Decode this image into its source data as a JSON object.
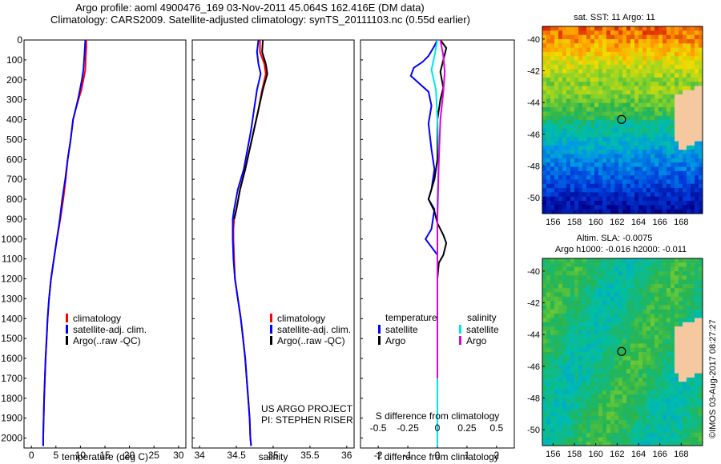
{
  "header": {
    "line1": "Argo profile: aoml 4900476_169 03-Nov-2011 45.064S 162.416E (DM data)",
    "line2": "Climatology: CARS2009. Satellite-adjusted climatology: synTS_20111103.nc (0.55d earlier)"
  },
  "colors": {
    "climatology": "#ff0000",
    "satellite": "#0000ff",
    "argo": "#000000",
    "sal_satellite": "#00e5e5",
    "sal_argo": "#e000e0",
    "land": "#f5c8a0"
  },
  "chart_data": [
    {
      "type": "line",
      "xlabel": "temperature (deg C)",
      "ylim": [
        2050,
        0
      ],
      "xlim": [
        -1.5,
        31.5
      ],
      "xticks": [
        "0",
        "5",
        "10",
        "15",
        "20",
        "25",
        "30"
      ],
      "yticks": [
        "0",
        "100",
        "200",
        "300",
        "400",
        "500",
        "600",
        "700",
        "800",
        "900",
        "1000",
        "1100",
        "1200",
        "1300",
        "1400",
        "1500",
        "1600",
        "1700",
        "1800",
        "1900",
        "2000"
      ],
      "legend": [
        "climatology",
        "satellite-adj. clim.",
        "Argo(..raw -QC)"
      ],
      "series": [
        {
          "name": "climatology",
          "points": [
            [
              11.2,
              0
            ],
            [
              11.2,
              40
            ],
            [
              11.1,
              80
            ],
            [
              11.0,
              150
            ],
            [
              10.6,
              200
            ],
            [
              10.2,
              250
            ],
            [
              9.6,
              300
            ],
            [
              9.0,
              350
            ],
            [
              8.5,
              400
            ],
            [
              8.0,
              500
            ],
            [
              7.4,
              600
            ],
            [
              7.0,
              700
            ],
            [
              6.5,
              800
            ],
            [
              5.9,
              900
            ],
            [
              5.2,
              1000
            ],
            [
              4.6,
              1100
            ],
            [
              4.0,
              1200
            ],
            [
              3.6,
              1300
            ],
            [
              3.3,
              1400
            ],
            [
              3.1,
              1500
            ],
            [
              2.9,
              1600
            ],
            [
              2.75,
              1700
            ],
            [
              2.6,
              1800
            ],
            [
              2.5,
              1900
            ],
            [
              2.4,
              2000
            ],
            [
              2.4,
              2040
            ]
          ]
        },
        {
          "name": "satellite-adj. clim.",
          "points": [
            [
              11.0,
              0
            ],
            [
              10.9,
              40
            ],
            [
              10.8,
              80
            ],
            [
              10.6,
              150
            ],
            [
              10.3,
              200
            ],
            [
              9.9,
              250
            ],
            [
              9.5,
              300
            ],
            [
              9.0,
              350
            ],
            [
              8.5,
              400
            ],
            [
              8.0,
              500
            ],
            [
              7.4,
              600
            ],
            [
              6.9,
              700
            ],
            [
              6.3,
              800
            ],
            [
              5.8,
              900
            ],
            [
              5.2,
              1000
            ],
            [
              4.6,
              1100
            ],
            [
              4.0,
              1200
            ],
            [
              3.6,
              1300
            ],
            [
              3.3,
              1400
            ],
            [
              3.1,
              1500
            ],
            [
              2.9,
              1600
            ],
            [
              2.75,
              1700
            ],
            [
              2.6,
              1800
            ],
            [
              2.5,
              1900
            ],
            [
              2.4,
              2000
            ],
            [
              2.4,
              2040
            ]
          ]
        }
      ]
    },
    {
      "type": "line",
      "xlabel": "salinity",
      "ylim": [
        2050,
        0
      ],
      "xlim": [
        33.9,
        36.1
      ],
      "xticks": [
        "34",
        "34.5",
        "35",
        "35.5",
        "36"
      ],
      "legend": [
        "climatology",
        "satellite-adj. clim.",
        "Argo(..raw -QC)"
      ],
      "annotation": [
        "US ARGO PROJECT",
        "PI: STEPHEN RISER"
      ],
      "series": [
        {
          "name": "climatology",
          "points": [
            [
              34.82,
              0
            ],
            [
              34.82,
              60
            ],
            [
              34.88,
              120
            ],
            [
              34.9,
              170
            ],
            [
              34.85,
              250
            ],
            [
              34.8,
              350
            ],
            [
              34.74,
              450
            ],
            [
              34.68,
              550
            ],
            [
              34.62,
              650
            ],
            [
              34.55,
              750
            ],
            [
              34.5,
              850
            ],
            [
              34.47,
              900
            ],
            [
              34.46,
              950
            ],
            [
              34.46,
              1000
            ],
            [
              34.47,
              1100
            ],
            [
              34.48,
              1200
            ],
            [
              34.52,
              1300
            ],
            [
              34.56,
              1400
            ],
            [
              34.59,
              1500
            ],
            [
              34.62,
              1600
            ],
            [
              34.64,
              1700
            ],
            [
              34.66,
              1800
            ],
            [
              34.68,
              1900
            ],
            [
              34.69,
              2000
            ],
            [
              34.7,
              2040
            ]
          ]
        },
        {
          "name": "satellite-adj. clim.",
          "points": [
            [
              34.8,
              0
            ],
            [
              34.78,
              60
            ],
            [
              34.8,
              120
            ],
            [
              34.83,
              170
            ],
            [
              34.78,
              250
            ],
            [
              34.74,
              350
            ],
            [
              34.7,
              450
            ],
            [
              34.65,
              550
            ],
            [
              34.6,
              650
            ],
            [
              34.52,
              750
            ],
            [
              34.47,
              850
            ],
            [
              34.45,
              900
            ],
            [
              34.45,
              950
            ],
            [
              34.45,
              1000
            ],
            [
              34.46,
              1100
            ],
            [
              34.48,
              1200
            ],
            [
              34.52,
              1300
            ],
            [
              34.56,
              1400
            ],
            [
              34.59,
              1500
            ],
            [
              34.62,
              1600
            ],
            [
              34.64,
              1700
            ],
            [
              34.66,
              1800
            ],
            [
              34.68,
              1900
            ],
            [
              34.69,
              2000
            ],
            [
              34.7,
              2040
            ]
          ]
        },
        {
          "name": "Argo(..raw -QC)",
          "points": [
            [
              34.86,
              0
            ],
            [
              34.85,
              60
            ],
            [
              34.9,
              120
            ],
            [
              34.92,
              170
            ],
            [
              34.86,
              250
            ],
            [
              34.8,
              350
            ],
            [
              34.74,
              450
            ],
            [
              34.68,
              550
            ],
            [
              34.62,
              650
            ],
            [
              34.55,
              750
            ],
            [
              34.5,
              850
            ],
            [
              34.47,
              900
            ]
          ]
        }
      ]
    },
    {
      "type": "line",
      "xlabel": "T difference from climatology",
      "xlabel2": "S difference from climatology",
      "ylim": [
        2050,
        0
      ],
      "xlim": [
        -2.6,
        2.6
      ],
      "xticks": [
        "-2",
        "-1",
        "0",
        "1",
        "2"
      ],
      "xticks2": [
        "-0.5",
        "-0.25",
        "0",
        "0.25",
        "0.5"
      ],
      "legend_headers": [
        "temperature",
        "salinity"
      ],
      "legend": [
        "satellite",
        "Argo",
        "satellite",
        "Argo"
      ],
      "series": [
        {
          "name": "satellite",
          "points": [
            [
              0,
              0
            ],
            [
              -0.1,
              30
            ],
            [
              -0.3,
              80
            ],
            [
              -0.5,
              110
            ],
            [
              -0.8,
              140
            ],
            [
              -0.9,
              180
            ],
            [
              -0.6,
              220
            ],
            [
              -0.3,
              260
            ],
            [
              -0.2,
              330
            ],
            [
              -0.3,
              420
            ],
            [
              -0.2,
              550
            ],
            [
              -0.1,
              650
            ],
            [
              -0.2,
              750
            ],
            [
              -0.3,
              800
            ],
            [
              -0.1,
              850
            ],
            [
              -0.2,
              950
            ],
            [
              -0.4,
              1000
            ],
            [
              0,
              1080
            ],
            [
              0,
              2040
            ]
          ]
        },
        {
          "name": "Argo",
          "points": [
            [
              0.1,
              0
            ],
            [
              0.3,
              40
            ],
            [
              0.2,
              100
            ],
            [
              0.1,
              160
            ],
            [
              0.2,
              240
            ],
            [
              0.1,
              300
            ],
            [
              0,
              400
            ],
            [
              0,
              600
            ],
            [
              -0.1,
              700
            ],
            [
              -0.3,
              800
            ],
            [
              -0.1,
              860
            ],
            [
              0,
              920
            ],
            [
              0.2,
              980
            ],
            [
              0.3,
              1020
            ],
            [
              0.2,
              1080
            ],
            [
              0.05,
              1120
            ],
            [
              0,
              1200
            ]
          ]
        },
        {
          "name": "satellite",
          "points": [
            [
              0,
              0
            ],
            [
              -0.1,
              80
            ],
            [
              -0.2,
              150
            ],
            [
              -0.05,
              250
            ],
            [
              0,
              400
            ],
            [
              0.05,
              600
            ],
            [
              0,
              800
            ],
            [
              0,
              1000
            ],
            [
              0,
              1200
            ],
            [
              0,
              1500
            ],
            [
              0,
              2040
            ]
          ]
        },
        {
          "name": "Argo",
          "points": [
            [
              0.1,
              0
            ],
            [
              0.2,
              80
            ],
            [
              0.25,
              160
            ],
            [
              0.2,
              260
            ],
            [
              0.1,
              400
            ],
            [
              0.05,
              600
            ],
            [
              0,
              900
            ],
            [
              0,
              1300
            ],
            [
              0,
              1700
            ]
          ]
        }
      ]
    },
    {
      "type": "heatmap",
      "title": "sat. SST: 11 Argo: 11",
      "xticks": [
        "156",
        "158",
        "160",
        "162",
        "164",
        "166",
        "168"
      ],
      "yticks": [
        "-40",
        "-42",
        "-44",
        "-46",
        "-48",
        "-50"
      ],
      "marker": [
        162.416,
        -45.064
      ]
    },
    {
      "type": "heatmap",
      "title": "Altim. SLA: -0.0075",
      "subtitle": "Argo h1000: -0.016 h2000: -0.011",
      "xticks": [
        "156",
        "158",
        "160",
        "162",
        "164",
        "166",
        "168"
      ],
      "yticks": [
        "-40",
        "-42",
        "-44",
        "-46",
        "-48",
        "-50"
      ],
      "marker": [
        162.416,
        -45.064
      ]
    }
  ],
  "side_label": "©IMOS 03-Aug-2017 08:27:27"
}
